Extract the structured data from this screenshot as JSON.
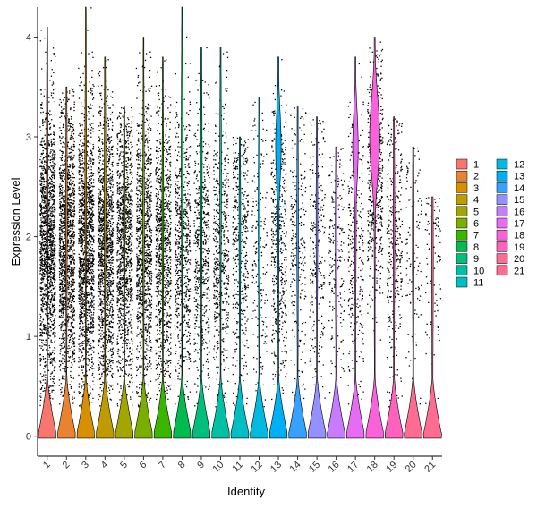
{
  "chart_data": {
    "type": "violin",
    "xlabel": "Identity",
    "ylabel": "Expression Level",
    "ylim": [
      -0.2,
      4.3
    ],
    "yticks": [
      0,
      1,
      2,
      3,
      4
    ],
    "grid": false,
    "legend_placement": "right",
    "categories": [
      "1",
      "2",
      "3",
      "4",
      "5",
      "6",
      "7",
      "8",
      "9",
      "10",
      "11",
      "12",
      "13",
      "14",
      "15",
      "16",
      "17",
      "18",
      "19",
      "20",
      "21"
    ],
    "colors": [
      "#F8766D",
      "#EA8331",
      "#D89000",
      "#C09B00",
      "#A3A500",
      "#7CAE00",
      "#39B600",
      "#00BB4E",
      "#00BF7D",
      "#00C1A3",
      "#00BFC4",
      "#00BAE0",
      "#00B0F6",
      "#35A2FF",
      "#9590FF",
      "#C77CFF",
      "#E76BF3",
      "#FA62DB",
      "#FF62BC",
      "#FF6C91",
      "#FF6C91"
    ],
    "series": [
      {
        "name": "1",
        "max_expression": 4.1,
        "upper_density_top": 3.7
      },
      {
        "name": "2",
        "max_expression": 3.5,
        "upper_density_top": 3.0
      },
      {
        "name": "3",
        "max_expression": 4.3,
        "upper_density_top": 3.6
      },
      {
        "name": "4",
        "max_expression": 3.8,
        "upper_density_top": 3.3
      },
      {
        "name": "5",
        "max_expression": 3.3,
        "upper_density_top": 3.0
      },
      {
        "name": "6",
        "max_expression": 4.0,
        "upper_density_top": 3.0
      },
      {
        "name": "7",
        "max_expression": 3.8,
        "upper_density_top": 3.0
      },
      {
        "name": "8",
        "max_expression": 4.3,
        "upper_density_top": 3.8
      },
      {
        "name": "9",
        "max_expression": 3.9,
        "upper_density_top": 3.6
      },
      {
        "name": "10",
        "max_expression": 3.9,
        "upper_density_top": 3.5
      },
      {
        "name": "11",
        "max_expression": 3.0,
        "upper_density_top": 2.8
      },
      {
        "name": "12",
        "max_expression": 3.4,
        "upper_density_top": 2.9
      },
      {
        "name": "13",
        "max_expression": 3.8,
        "upper_density_top": 3.6
      },
      {
        "name": "14",
        "max_expression": 3.3,
        "upper_density_top": 2.8
      },
      {
        "name": "15",
        "max_expression": 3.2,
        "upper_density_top": 2.9
      },
      {
        "name": "16",
        "max_expression": 2.9,
        "upper_density_top": 2.6
      },
      {
        "name": "17",
        "max_expression": 3.8,
        "upper_density_top": 3.2
      },
      {
        "name": "18",
        "max_expression": 4.0,
        "upper_density_top": 3.9
      },
      {
        "name": "19",
        "max_expression": 3.2,
        "upper_density_top": 2.8
      },
      {
        "name": "20",
        "max_expression": 2.9,
        "upper_density_top": 2.6
      },
      {
        "name": "21",
        "max_expression": 2.4,
        "upper_density_top": 2.3
      }
    ]
  }
}
